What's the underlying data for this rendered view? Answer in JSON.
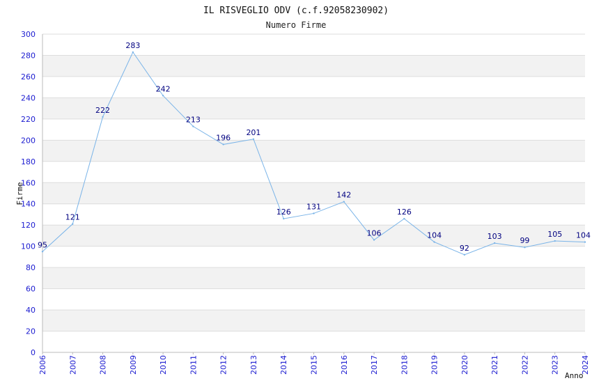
{
  "chart_data": {
    "type": "line",
    "title": "IL RISVEGLIO ODV (c.f.92058230902)",
    "subtitle": "Numero Firme",
    "xlabel": "Anno",
    "ylabel": "Firme",
    "x": [
      "2006",
      "2007",
      "2008",
      "2009",
      "2010",
      "2011",
      "2012",
      "2013",
      "2014",
      "2015",
      "2016",
      "2017",
      "2018",
      "2019",
      "2020",
      "2021",
      "2022",
      "2023",
      "2024"
    ],
    "series": [
      {
        "values": [
          95,
          121,
          222,
          283,
          242,
          213,
          196,
          201,
          126,
          131,
          142,
          106,
          126,
          104,
          92,
          103,
          99,
          105,
          104
        ]
      }
    ],
    "ylim": [
      0,
      300
    ],
    "yticks": [
      0,
      20,
      40,
      60,
      80,
      100,
      120,
      140,
      160,
      180,
      200,
      220,
      240,
      260,
      280,
      300
    ],
    "grid": true,
    "legend": "none",
    "colors": {
      "line": "#7ab4e8",
      "band": "#f2f2f2",
      "gridline": "#dddddd",
      "tick_text": "#1a1ad0",
      "data_label": "#000080"
    }
  }
}
